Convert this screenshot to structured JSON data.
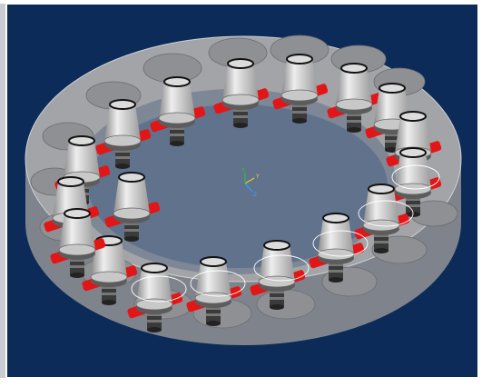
{
  "viewport": {
    "axis_labels": [
      "Y",
      "X",
      "Z"
    ]
  }
}
